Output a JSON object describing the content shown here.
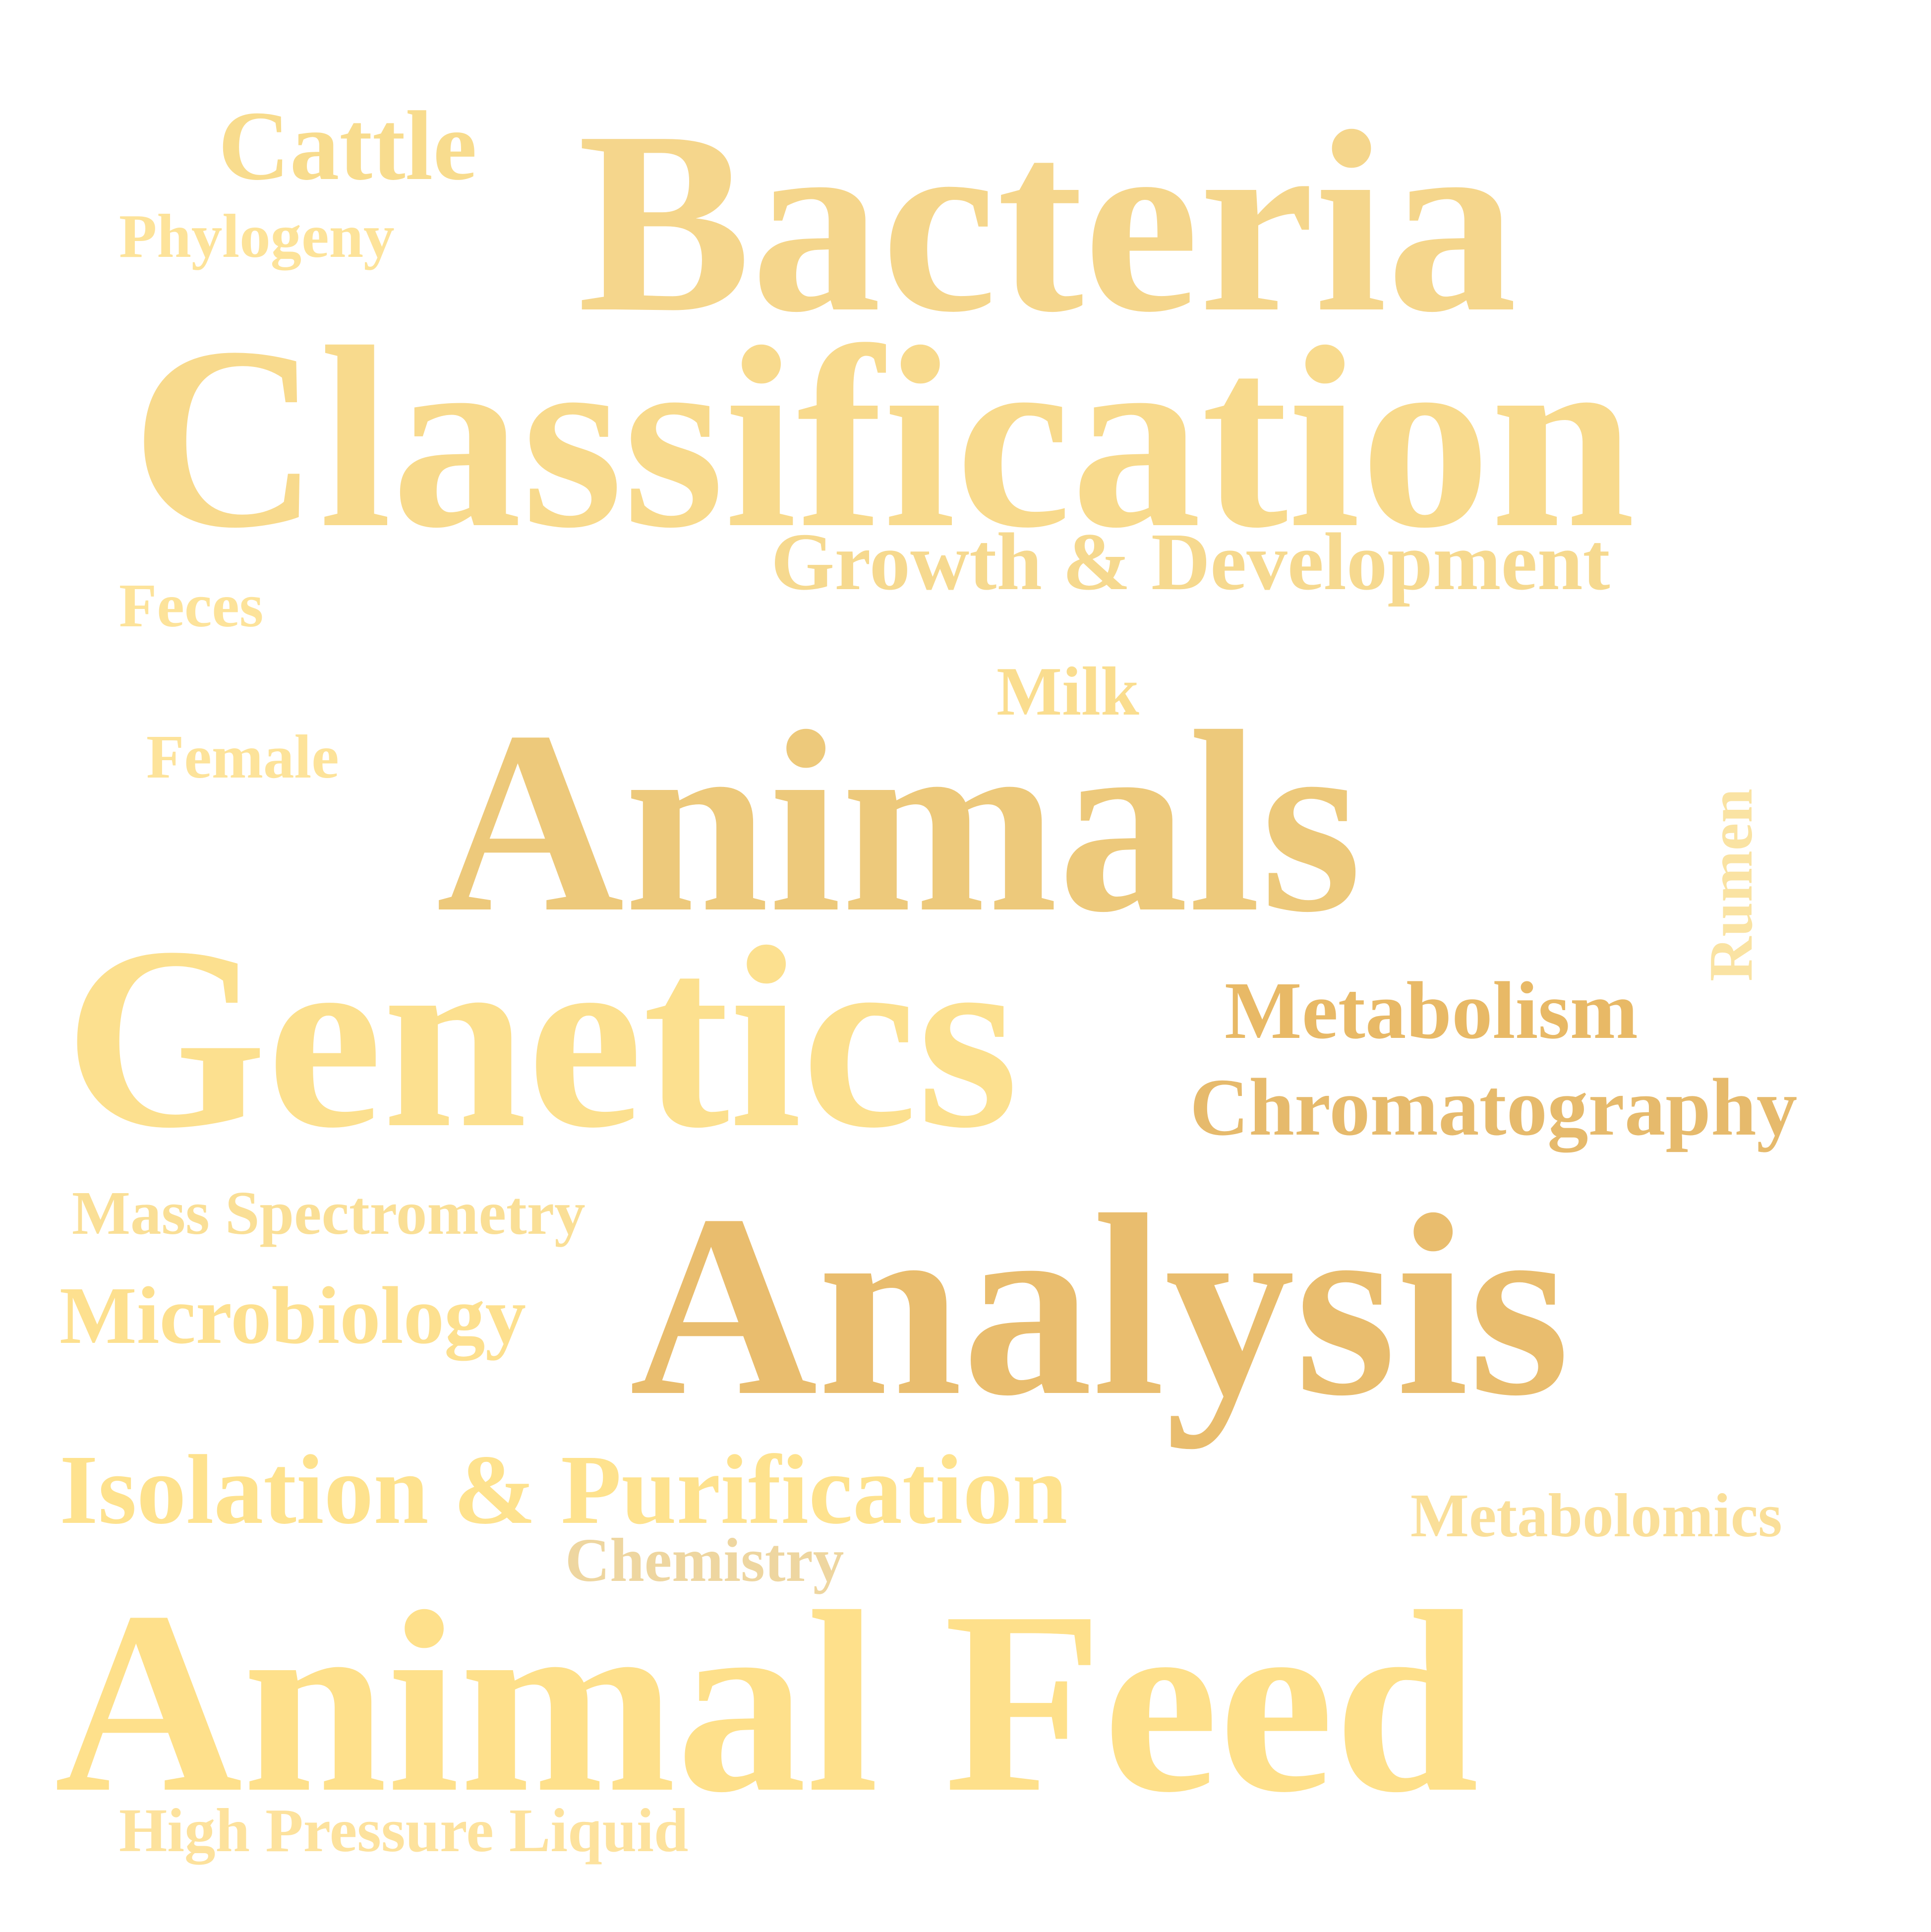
{
  "words": [
    {
      "key": "bacteria",
      "text": "Bacteria",
      "color": "#F5D68C"
    },
    {
      "key": "cattle",
      "text": "Cattle",
      "color": "#F8DC8E"
    },
    {
      "key": "phylogeny",
      "text": "Phylogeny",
      "color": "#FDE39A"
    },
    {
      "key": "classification",
      "text": "Classification",
      "color": "#F8DA8D"
    },
    {
      "key": "growth",
      "text": "Growth & Development",
      "color": "#F6D98F"
    },
    {
      "key": "feces",
      "text": "Feces",
      "color": "#FDE39A"
    },
    {
      "key": "milk",
      "text": "Milk",
      "color": "#FADD8F"
    },
    {
      "key": "female",
      "text": "Female",
      "color": "#FDE39A"
    },
    {
      "key": "animals",
      "text": "Animals",
      "color": "#EDC97B"
    },
    {
      "key": "rumen",
      "text": "Rumen",
      "color": "#FAE3A3"
    },
    {
      "key": "genetics",
      "text": "Genetics",
      "color": "#FCE08F"
    },
    {
      "key": "metabolism",
      "text": "Metabolism",
      "color": "#E8B966"
    },
    {
      "key": "chromatography",
      "text": "Chromatography",
      "color": "#E6BA6C"
    },
    {
      "key": "mass",
      "text": "Mass Spectrometry",
      "color": "#FADF96"
    },
    {
      "key": "microbiology",
      "text": "Microbiology",
      "color": "#FDE08F"
    },
    {
      "key": "analysis",
      "text": "Analysis",
      "color": "#E9BD6E"
    },
    {
      "key": "isolation",
      "text": "Isolation & Purification",
      "color": "#FEE28E"
    },
    {
      "key": "metabolomics",
      "text": "Metabolomics",
      "color": "#FADF99"
    },
    {
      "key": "chemistry",
      "text": "Chemistry",
      "color": "#EED6A0"
    },
    {
      "key": "animalfeed",
      "text": "Animal Feed",
      "color": "#FEE08B"
    },
    {
      "key": "highpressure",
      "text": "High Pressure Liquid",
      "color": "#FDE29D"
    }
  ]
}
